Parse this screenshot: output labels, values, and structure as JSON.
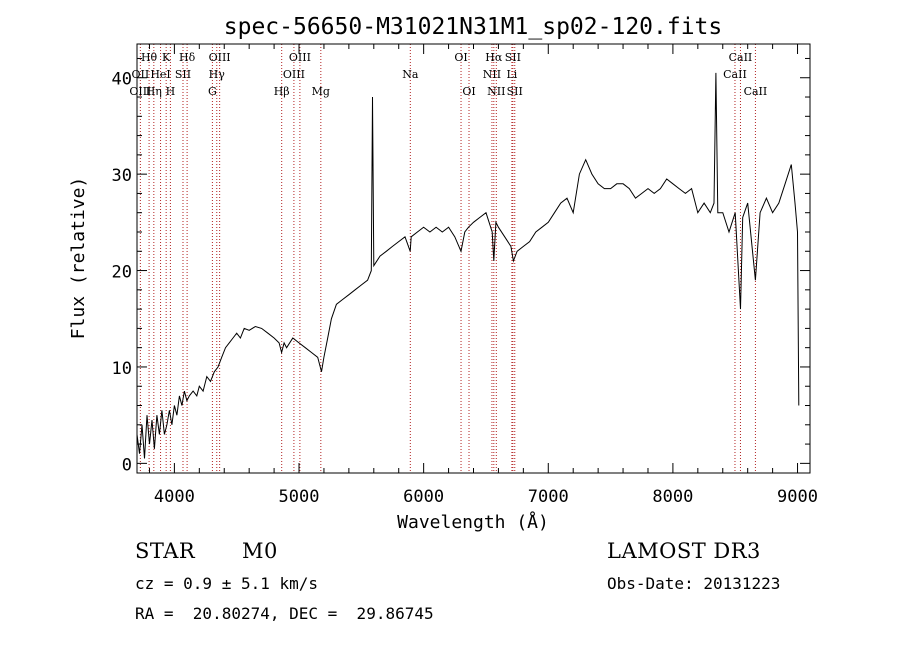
{
  "chart_data": {
    "type": "line",
    "title": "spec-56650-M31021N31M1_sp02-120.fits",
    "xlabel": "Wavelength (Å)",
    "ylabel": "Flux (relative)",
    "xlim": [
      3700,
      9100
    ],
    "ylim": [
      -1,
      43.5
    ],
    "x_ticks": [
      4000,
      5000,
      6000,
      7000,
      8000,
      9000
    ],
    "y_ticks": [
      0,
      10,
      20,
      30,
      40
    ],
    "x_tick_labels": [
      "4000",
      "5000",
      "6000",
      "7000",
      "8000",
      "9000"
    ],
    "y_tick_labels": [
      "0",
      "10",
      "20",
      "30",
      "40"
    ],
    "grid": false,
    "series": [
      {
        "color": "#000000",
        "points": [
          [
            3700,
            3
          ],
          [
            3720,
            1
          ],
          [
            3740,
            4
          ],
          [
            3760,
            0.5
          ],
          [
            3780,
            5
          ],
          [
            3800,
            2
          ],
          [
            3820,
            4.5
          ],
          [
            3840,
            1.5
          ],
          [
            3860,
            5
          ],
          [
            3880,
            3
          ],
          [
            3900,
            5.5
          ],
          [
            3920,
            3
          ],
          [
            3940,
            4
          ],
          [
            3960,
            5.5
          ],
          [
            3980,
            4
          ],
          [
            4000,
            6
          ],
          [
            4020,
            5
          ],
          [
            4040,
            7
          ],
          [
            4060,
            6
          ],
          [
            4080,
            7.5
          ],
          [
            4100,
            6.5
          ],
          [
            4120,
            7
          ],
          [
            4150,
            7.5
          ],
          [
            4180,
            7
          ],
          [
            4200,
            8
          ],
          [
            4230,
            7.5
          ],
          [
            4260,
            9
          ],
          [
            4290,
            8.5
          ],
          [
            4320,
            9.5
          ],
          [
            4350,
            10
          ],
          [
            4380,
            11
          ],
          [
            4410,
            12
          ],
          [
            4440,
            12.5
          ],
          [
            4470,
            13
          ],
          [
            4500,
            13.5
          ],
          [
            4530,
            13
          ],
          [
            4560,
            14
          ],
          [
            4600,
            13.8
          ],
          [
            4650,
            14.2
          ],
          [
            4700,
            14
          ],
          [
            4750,
            13.5
          ],
          [
            4800,
            13
          ],
          [
            4840,
            12.5
          ],
          [
            4860,
            11.5
          ],
          [
            4880,
            12.5
          ],
          [
            4900,
            12
          ],
          [
            4950,
            13
          ],
          [
            5000,
            12.5
          ],
          [
            5050,
            12
          ],
          [
            5100,
            11.5
          ],
          [
            5150,
            11
          ],
          [
            5180,
            9.5
          ],
          [
            5200,
            11
          ],
          [
            5230,
            13
          ],
          [
            5260,
            15
          ],
          [
            5300,
            16.5
          ],
          [
            5350,
            17
          ],
          [
            5400,
            17.5
          ],
          [
            5450,
            18
          ],
          [
            5500,
            18.5
          ],
          [
            5550,
            19
          ],
          [
            5580,
            20
          ],
          [
            5590,
            38
          ],
          [
            5600,
            20.5
          ],
          [
            5650,
            21.5
          ],
          [
            5700,
            22
          ],
          [
            5750,
            22.5
          ],
          [
            5800,
            23
          ],
          [
            5850,
            23.5
          ],
          [
            5892,
            22
          ],
          [
            5900,
            23.5
          ],
          [
            5950,
            24
          ],
          [
            6000,
            24.5
          ],
          [
            6050,
            24
          ],
          [
            6100,
            24.5
          ],
          [
            6150,
            24
          ],
          [
            6200,
            24.5
          ],
          [
            6250,
            23.5
          ],
          [
            6300,
            22
          ],
          [
            6330,
            24
          ],
          [
            6360,
            24.5
          ],
          [
            6400,
            25
          ],
          [
            6450,
            25.5
          ],
          [
            6500,
            26
          ],
          [
            6550,
            24
          ],
          [
            6563,
            21
          ],
          [
            6580,
            25
          ],
          [
            6600,
            24.5
          ],
          [
            6650,
            23.5
          ],
          [
            6700,
            22.5
          ],
          [
            6720,
            21
          ],
          [
            6750,
            22
          ],
          [
            6800,
            22.5
          ],
          [
            6850,
            23
          ],
          [
            6900,
            24
          ],
          [
            6950,
            24.5
          ],
          [
            7000,
            25
          ],
          [
            7050,
            26
          ],
          [
            7100,
            27
          ],
          [
            7150,
            27.5
          ],
          [
            7200,
            26
          ],
          [
            7250,
            30
          ],
          [
            7300,
            31.5
          ],
          [
            7350,
            30
          ],
          [
            7400,
            29
          ],
          [
            7450,
            28.5
          ],
          [
            7500,
            28.5
          ],
          [
            7550,
            29
          ],
          [
            7600,
            29
          ],
          [
            7650,
            28.5
          ],
          [
            7700,
            27.5
          ],
          [
            7750,
            28
          ],
          [
            7800,
            28.5
          ],
          [
            7850,
            28
          ],
          [
            7900,
            28.5
          ],
          [
            7950,
            29.5
          ],
          [
            8000,
            29
          ],
          [
            8050,
            28.5
          ],
          [
            8100,
            28
          ],
          [
            8150,
            28.5
          ],
          [
            8200,
            26
          ],
          [
            8250,
            27
          ],
          [
            8300,
            26
          ],
          [
            8330,
            27
          ],
          [
            8345,
            40.5
          ],
          [
            8360,
            26
          ],
          [
            8400,
            26
          ],
          [
            8450,
            24
          ],
          [
            8500,
            26
          ],
          [
            8542,
            16
          ],
          [
            8560,
            25.5
          ],
          [
            8600,
            27
          ],
          [
            8662,
            19
          ],
          [
            8700,
            26
          ],
          [
            8750,
            27.5
          ],
          [
            8800,
            26
          ],
          [
            8850,
            27
          ],
          [
            8900,
            29
          ],
          [
            8950,
            31
          ],
          [
            8980,
            27
          ],
          [
            9000,
            24
          ],
          [
            9010,
            6
          ]
        ]
      }
    ],
    "spectral_lines": [
      {
        "label": "Hθ",
        "wavelength": 3797,
        "row": 0
      },
      {
        "label": "OII",
        "wavelength": 3727,
        "row": 1
      },
      {
        "label": "OIII",
        "wavelength": 3727,
        "row": 2
      },
      {
        "label": "K",
        "wavelength": 3934,
        "row": 0
      },
      {
        "label": "HeI",
        "wavelength": 3889,
        "row": 1
      },
      {
        "label": "Hη",
        "wavelength": 3835,
        "row": 2
      },
      {
        "label": "SII",
        "wavelength": 4069,
        "row": 1
      },
      {
        "label": "H",
        "wavelength": 3968,
        "row": 2
      },
      {
        "label": "Hδ",
        "wavelength": 4102,
        "row": 0
      },
      {
        "label": "OIII",
        "wavelength": 4363,
        "row": 0
      },
      {
        "label": "Hγ",
        "wavelength": 4340,
        "row": 1
      },
      {
        "label": "G",
        "wavelength": 4305,
        "row": 2
      },
      {
        "label": "Hβ",
        "wavelength": 4861,
        "row": 2
      },
      {
        "label": "OIII",
        "wavelength": 5007,
        "row": 0
      },
      {
        "label": "OIII",
        "wavelength": 4959,
        "row": 1
      },
      {
        "label": "Mg",
        "wavelength": 5175,
        "row": 2
      },
      {
        "label": "Na",
        "wavelength": 5893,
        "row": 1
      },
      {
        "label": "OI",
        "wavelength": 6300,
        "row": 0
      },
      {
        "label": "OI",
        "wavelength": 6364,
        "row": 2
      },
      {
        "label": "Hα",
        "wavelength": 6563,
        "row": 0
      },
      {
        "label": "NII",
        "wavelength": 6548,
        "row": 1
      },
      {
        "label": "NII",
        "wavelength": 6583,
        "row": 2
      },
      {
        "label": "SII",
        "wavelength": 6716,
        "row": 0
      },
      {
        "label": "Li",
        "wavelength": 6708,
        "row": 1
      },
      {
        "label": "SII",
        "wavelength": 6731,
        "row": 2
      },
      {
        "label": "CaII",
        "wavelength": 8542,
        "row": 0
      },
      {
        "label": "CaII",
        "wavelength": 8498,
        "row": 1
      },
      {
        "label": "CaII",
        "wavelength": 8662,
        "row": 2
      }
    ]
  },
  "info": {
    "class_label": "STAR",
    "subclass_label": "M0",
    "survey": "LAMOST DR3",
    "cz": "cz = 0.9 ± 5.1 km/s",
    "obs_date": "Obs-Date: 20131223",
    "coords": "RA =  20.80274, DEC =  29.86745"
  },
  "colors": {
    "axes": "#000000",
    "spectrum": "#000000",
    "marker_lines": "#b22222"
  }
}
